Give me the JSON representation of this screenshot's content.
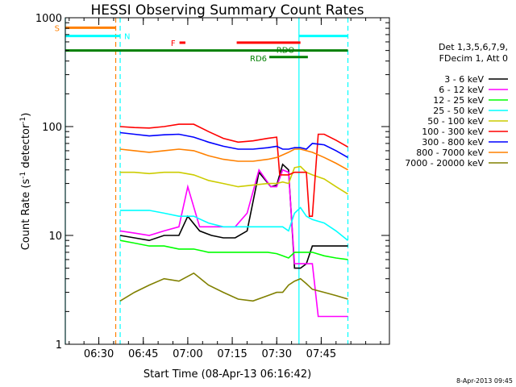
{
  "chart_data": {
    "type": "line",
    "title": "HESSI Observing Summary Count Rates",
    "xlabel": "Start Time (08-Apr-13 06:16:42)",
    "ylabel_parts": [
      "Count Rate (s",
      "-1",
      " detector",
      "-1",
      ")"
    ],
    "ylog": true,
    "ylim": [
      1,
      1000
    ],
    "xlim_min": [
      16.7,
      126
    ],
    "x_ticks": [
      {
        "m": 28,
        "label": "06:30"
      },
      {
        "m": 43,
        "label": "06:45"
      },
      {
        "m": 58,
        "label": "07:00"
      },
      {
        "m": 73,
        "label": "07:15"
      },
      {
        "m": 88,
        "label": "07:30"
      },
      {
        "m": 103,
        "label": "07:45"
      }
    ],
    "y_ticks": [
      {
        "v": 1,
        "label": "1"
      },
      {
        "v": 10,
        "label": "10"
      },
      {
        "v": 100,
        "label": "100"
      },
      {
        "v": 1000,
        "label": "1000"
      }
    ],
    "legend_header": [
      "Det 1,3,5,6,7,9,",
      "FDecim 1, Att 0"
    ],
    "series": [
      {
        "name": "3 - 6 keV",
        "color": "#000000",
        "x": [
          35.2,
          40,
          45,
          50,
          55,
          58,
          62,
          66,
          70,
          74,
          78,
          82,
          86,
          88,
          90,
          92,
          94,
          96,
          98,
          100,
          104,
          107,
          110,
          112
        ],
        "y": [
          10,
          9.5,
          9,
          10,
          10,
          15,
          11,
          10,
          9.5,
          9.5,
          11,
          38,
          28,
          29,
          45,
          40,
          5,
          5,
          5.5,
          8,
          8,
          8,
          8,
          8
        ]
      },
      {
        "name": "6 - 12 keV",
        "color": "#ff00ff",
        "x": [
          35.2,
          40,
          45,
          50,
          55,
          58,
          62,
          66,
          70,
          74,
          78,
          82,
          86,
          88,
          90,
          92,
          94,
          96,
          98,
          100,
          102,
          107,
          110,
          112
        ],
        "y": [
          11,
          10.5,
          10,
          11,
          12,
          28,
          12,
          12,
          12,
          12,
          16,
          40,
          28,
          28,
          40,
          38,
          5.5,
          5.5,
          5.5,
          5.5,
          1.8,
          1.8,
          1.8,
          1.8
        ]
      },
      {
        "name": "12 - 25 keV",
        "color": "#00ff00",
        "x": [
          35.2,
          40,
          45,
          50,
          55,
          60,
          65,
          70,
          75,
          80,
          85,
          88,
          90,
          92,
          94,
          96,
          98,
          100,
          104,
          108,
          112
        ],
        "y": [
          9,
          8.5,
          8,
          8,
          7.5,
          7.5,
          7,
          7,
          7,
          7,
          7,
          6.8,
          6.5,
          6.2,
          7,
          7,
          7,
          7,
          6.5,
          6.2,
          6
        ]
      },
      {
        "name": "25 - 50 keV",
        "color": "#00ffff",
        "x": [
          35.2,
          40,
          45,
          50,
          55,
          60,
          65,
          70,
          75,
          80,
          85,
          88,
          90,
          92,
          94,
          96,
          98,
          100,
          104,
          108,
          112
        ],
        "y": [
          17,
          17,
          17,
          16,
          15,
          15,
          13,
          12,
          12,
          12,
          12,
          12,
          12,
          11,
          16,
          18,
          15,
          14,
          13,
          11,
          9
        ]
      },
      {
        "name": "50 - 100 keV",
        "color": "#cccc00",
        "x": [
          35.2,
          40,
          45,
          50,
          55,
          60,
          65,
          70,
          75,
          80,
          85,
          88,
          90,
          92,
          94,
          96,
          98,
          100,
          104,
          108,
          112
        ],
        "y": [
          38,
          38,
          37,
          38,
          38,
          36,
          32,
          30,
          28,
          29,
          30,
          30,
          31,
          30,
          42,
          43,
          38,
          36,
          33,
          28,
          24
        ]
      },
      {
        "name": "100 - 300 keV",
        "color": "#ff0000",
        "x": [
          35.2,
          40,
          45,
          50,
          55,
          60,
          65,
          70,
          75,
          80,
          85,
          88,
          89,
          90,
          92,
          94,
          96,
          98,
          99,
          100,
          102,
          104,
          108,
          112
        ],
        "y": [
          100,
          98,
          97,
          100,
          105,
          105,
          90,
          78,
          72,
          74,
          78,
          80,
          36,
          36,
          36,
          38,
          38,
          38,
          15,
          15,
          85,
          85,
          75,
          65
        ]
      },
      {
        "name": "300 - 800 keV",
        "color": "#0000ff",
        "x": [
          35.2,
          40,
          45,
          50,
          55,
          60,
          65,
          70,
          75,
          80,
          85,
          88,
          90,
          92,
          94,
          96,
          98,
          100,
          104,
          108,
          112
        ],
        "y": [
          88,
          85,
          82,
          84,
          85,
          80,
          72,
          66,
          62,
          62,
          64,
          66,
          62,
          62,
          64,
          64,
          62,
          70,
          68,
          60,
          52
        ]
      },
      {
        "name": "800 - 7000 keV",
        "color": "#ff8000",
        "x": [
          35.2,
          40,
          45,
          50,
          55,
          60,
          65,
          70,
          75,
          80,
          85,
          88,
          90,
          92,
          94,
          96,
          98,
          100,
          104,
          108,
          112
        ],
        "y": [
          62,
          60,
          58,
          60,
          62,
          60,
          54,
          50,
          48,
          48,
          50,
          52,
          55,
          58,
          62,
          62,
          60,
          58,
          52,
          46,
          40
        ]
      },
      {
        "name": "7000 - 20000 keV",
        "color": "#808000",
        "x": [
          35.2,
          40,
          45,
          50,
          55,
          60,
          65,
          70,
          75,
          80,
          85,
          88,
          90,
          92,
          94,
          96,
          98,
          100,
          104,
          108,
          112
        ],
        "y": [
          2.5,
          3,
          3.5,
          4,
          3.8,
          4.5,
          3.5,
          3,
          2.6,
          2.5,
          2.8,
          3,
          3,
          3.5,
          3.8,
          4,
          3.6,
          3.2,
          3,
          2.8,
          2.6
        ]
      }
    ],
    "flags": [
      {
        "name": "S",
        "color": "#ff8000",
        "y": 810,
        "segments": [
          [
            16.7,
            33.7
          ]
        ]
      },
      {
        "name": "N",
        "color": "#00ffff",
        "y": 680,
        "segments": [
          [
            16.7,
            35.2
          ],
          [
            95.5,
            112
          ]
        ]
      },
      {
        "name": "F",
        "color": "#ff0000",
        "y": 590,
        "segments": [
          [
            55.2,
            57.2
          ],
          [
            74.5,
            96
          ]
        ]
      },
      {
        "name": "RDO",
        "color": "#008000",
        "y": 500,
        "segments": [
          [
            16.7,
            112
          ]
        ]
      },
      {
        "name": "RD6",
        "color": "#008000",
        "y": 435,
        "segments": [
          [
            85.5,
            98.5
          ]
        ]
      }
    ],
    "vlines": [
      {
        "m": 16.7,
        "color": "#00ffff",
        "dash": false
      },
      {
        "m": 33.7,
        "color": "#ff8000",
        "dash": true
      },
      {
        "m": 35.2,
        "color": "#00ffff",
        "dash": true
      },
      {
        "m": 95.5,
        "color": "#00ffff",
        "dash": false
      },
      {
        "m": 112,
        "color": "#00ffff",
        "dash": true
      }
    ]
  },
  "footer": {
    "date_stamp": "8-Apr-2013 09:45"
  }
}
